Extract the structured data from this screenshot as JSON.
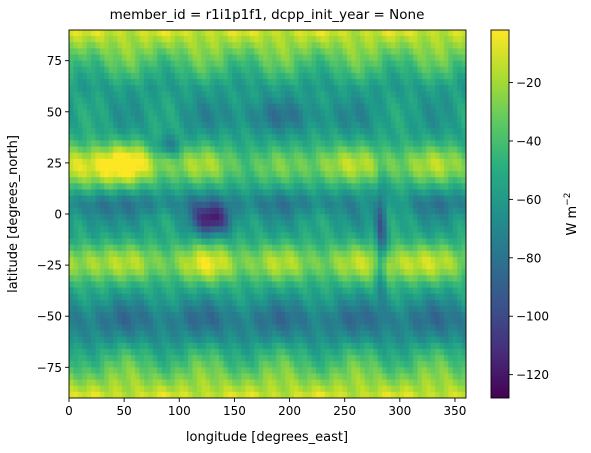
{
  "chart_data": {
    "type": "heatmap",
    "title": "member_id = r1i1p1f1, dcpp_init_year = None",
    "xlabel": "longitude [degrees_east]",
    "ylabel": "latitude [degrees_north]",
    "xlim": [
      0,
      360
    ],
    "ylim": [
      -90,
      90
    ],
    "x_ticks": [
      0,
      50,
      100,
      150,
      200,
      250,
      300,
      350
    ],
    "y_ticks": [
      -75,
      -50,
      -25,
      0,
      25,
      50,
      75
    ],
    "colorbar": {
      "label": "W m",
      "label_superscript": "−2",
      "colormap": "viridis",
      "vmin": -128,
      "vmax": -2,
      "ticks": [
        -120,
        -100,
        -80,
        -60,
        -40,
        -20
      ],
      "tick_labels": [
        "−120",
        "−100",
        "−80",
        "−60",
        "−40",
        "−20"
      ]
    },
    "grid": false,
    "approximate_field_features": {
      "polar_regions": -8,
      "subtropical_deserts": -15,
      "equatorial_pacific_band": -75,
      "itcz_maritime_continent_min": -125,
      "andes_min": -120,
      "southern_ocean_band": -85,
      "north_pacific_storm_track": -80
    }
  }
}
